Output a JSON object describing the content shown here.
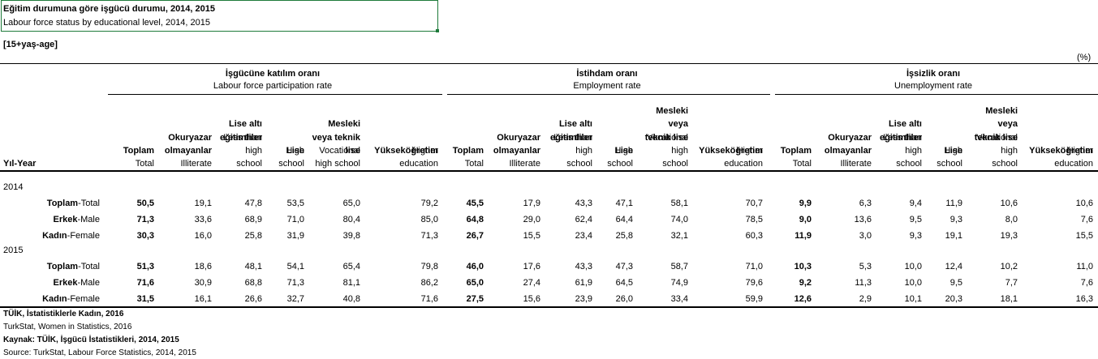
{
  "title": {
    "tr": "Eğitim durumuna göre işgücü durumu, 2014, 2015",
    "en": "Labour force status by educational level, 2014, 2015"
  },
  "age_note": "[15+yaş-age]",
  "unit": "(%)",
  "year_header": "Yıl-Year",
  "groups": [
    {
      "tr": "İşgücüne katılım oranı",
      "en": "Labour force participation rate"
    },
    {
      "tr": "İstihdam oranı",
      "en": "Employment rate"
    },
    {
      "tr": "İşsizlik oranı",
      "en": "Unemployment rate"
    }
  ],
  "columns": [
    {
      "tr": [
        "",
        "",
        "",
        "Toplam"
      ],
      "en": [
        "Total"
      ]
    },
    {
      "tr": [
        "",
        "",
        "Okuryazar",
        "olmayanlar"
      ],
      "en": [
        "Illiterate"
      ]
    },
    {
      "tr": [
        "",
        "Lise altı",
        "eğitimliler",
        ""
      ],
      "en": [
        "Less than",
        "high",
        "school"
      ]
    },
    {
      "tr": [
        "",
        "",
        "",
        "Lise"
      ],
      "en": [
        "High",
        "school"
      ]
    },
    {
      "tr": [
        "",
        "Mesleki",
        "veya teknik",
        "lise"
      ],
      "en": [
        "Vocational",
        "high school"
      ]
    },
    {
      "tr": [
        "",
        "",
        "",
        "Yükseköğretim"
      ],
      "en": [
        "Higher",
        "education"
      ]
    }
  ],
  "years": [
    {
      "year": "2014",
      "rows": [
        {
          "tr": "Toplam",
          "en": "-Total",
          "values": [
            "50,5",
            "19,1",
            "47,8",
            "53,5",
            "65,0",
            "79,2",
            "45,5",
            "17,9",
            "43,3",
            "47,1",
            "58,1",
            "70,7",
            "9,9",
            "6,3",
            "9,4",
            "11,9",
            "10,6",
            "10,6"
          ]
        },
        {
          "tr": "Erkek",
          "en": "-Male",
          "values": [
            "71,3",
            "33,6",
            "68,9",
            "71,0",
            "80,4",
            "85,0",
            "64,8",
            "29,0",
            "62,4",
            "64,4",
            "74,0",
            "78,5",
            "9,0",
            "13,6",
            "9,5",
            "9,3",
            "8,0",
            "7,6"
          ]
        },
        {
          "tr": "Kadın",
          "en": "-Female",
          "values": [
            "30,3",
            "16,0",
            "25,8",
            "31,9",
            "39,8",
            "71,3",
            "26,7",
            "15,5",
            "23,4",
            "25,8",
            "32,1",
            "60,3",
            "11,9",
            "3,0",
            "9,3",
            "19,1",
            "19,3",
            "15,5"
          ]
        }
      ]
    },
    {
      "year": "2015",
      "rows": [
        {
          "tr": "Toplam",
          "en": "-Total",
          "values": [
            "51,3",
            "18,6",
            "48,1",
            "54,1",
            "65,4",
            "79,8",
            "46,0",
            "17,6",
            "43,3",
            "47,3",
            "58,7",
            "71,0",
            "10,3",
            "5,3",
            "10,0",
            "12,4",
            "10,2",
            "11,0"
          ]
        },
        {
          "tr": "Erkek",
          "en": "-Male",
          "values": [
            "71,6",
            "30,9",
            "68,8",
            "71,3",
            "81,1",
            "86,2",
            "65,0",
            "27,4",
            "61,9",
            "64,5",
            "74,9",
            "79,6",
            "9,2",
            "11,3",
            "10,0",
            "9,5",
            "7,7",
            "7,6"
          ]
        },
        {
          "tr": "Kadın",
          "en": "-Female",
          "values": [
            "31,5",
            "16,1",
            "26,6",
            "32,7",
            "40,8",
            "71,6",
            "27,5",
            "15,6",
            "23,9",
            "26,0",
            "33,4",
            "59,9",
            "12,6",
            "2,9",
            "10,1",
            "20,3",
            "18,1",
            "16,3"
          ]
        }
      ]
    }
  ],
  "footnotes": [
    {
      "text": "TÜİK, İstatistiklerle Kadın, 2016",
      "bold": true
    },
    {
      "text": "TurkStat, Women in Statistics, 2016",
      "bold": false
    },
    {
      "text": "Kaynak: TÜİK, İşgücü İstatistikleri, 2014, 2015",
      "bold": true
    },
    {
      "text": "Source: TurkStat, Labour Force Statistics, 2014, 2015",
      "bold": false
    }
  ]
}
